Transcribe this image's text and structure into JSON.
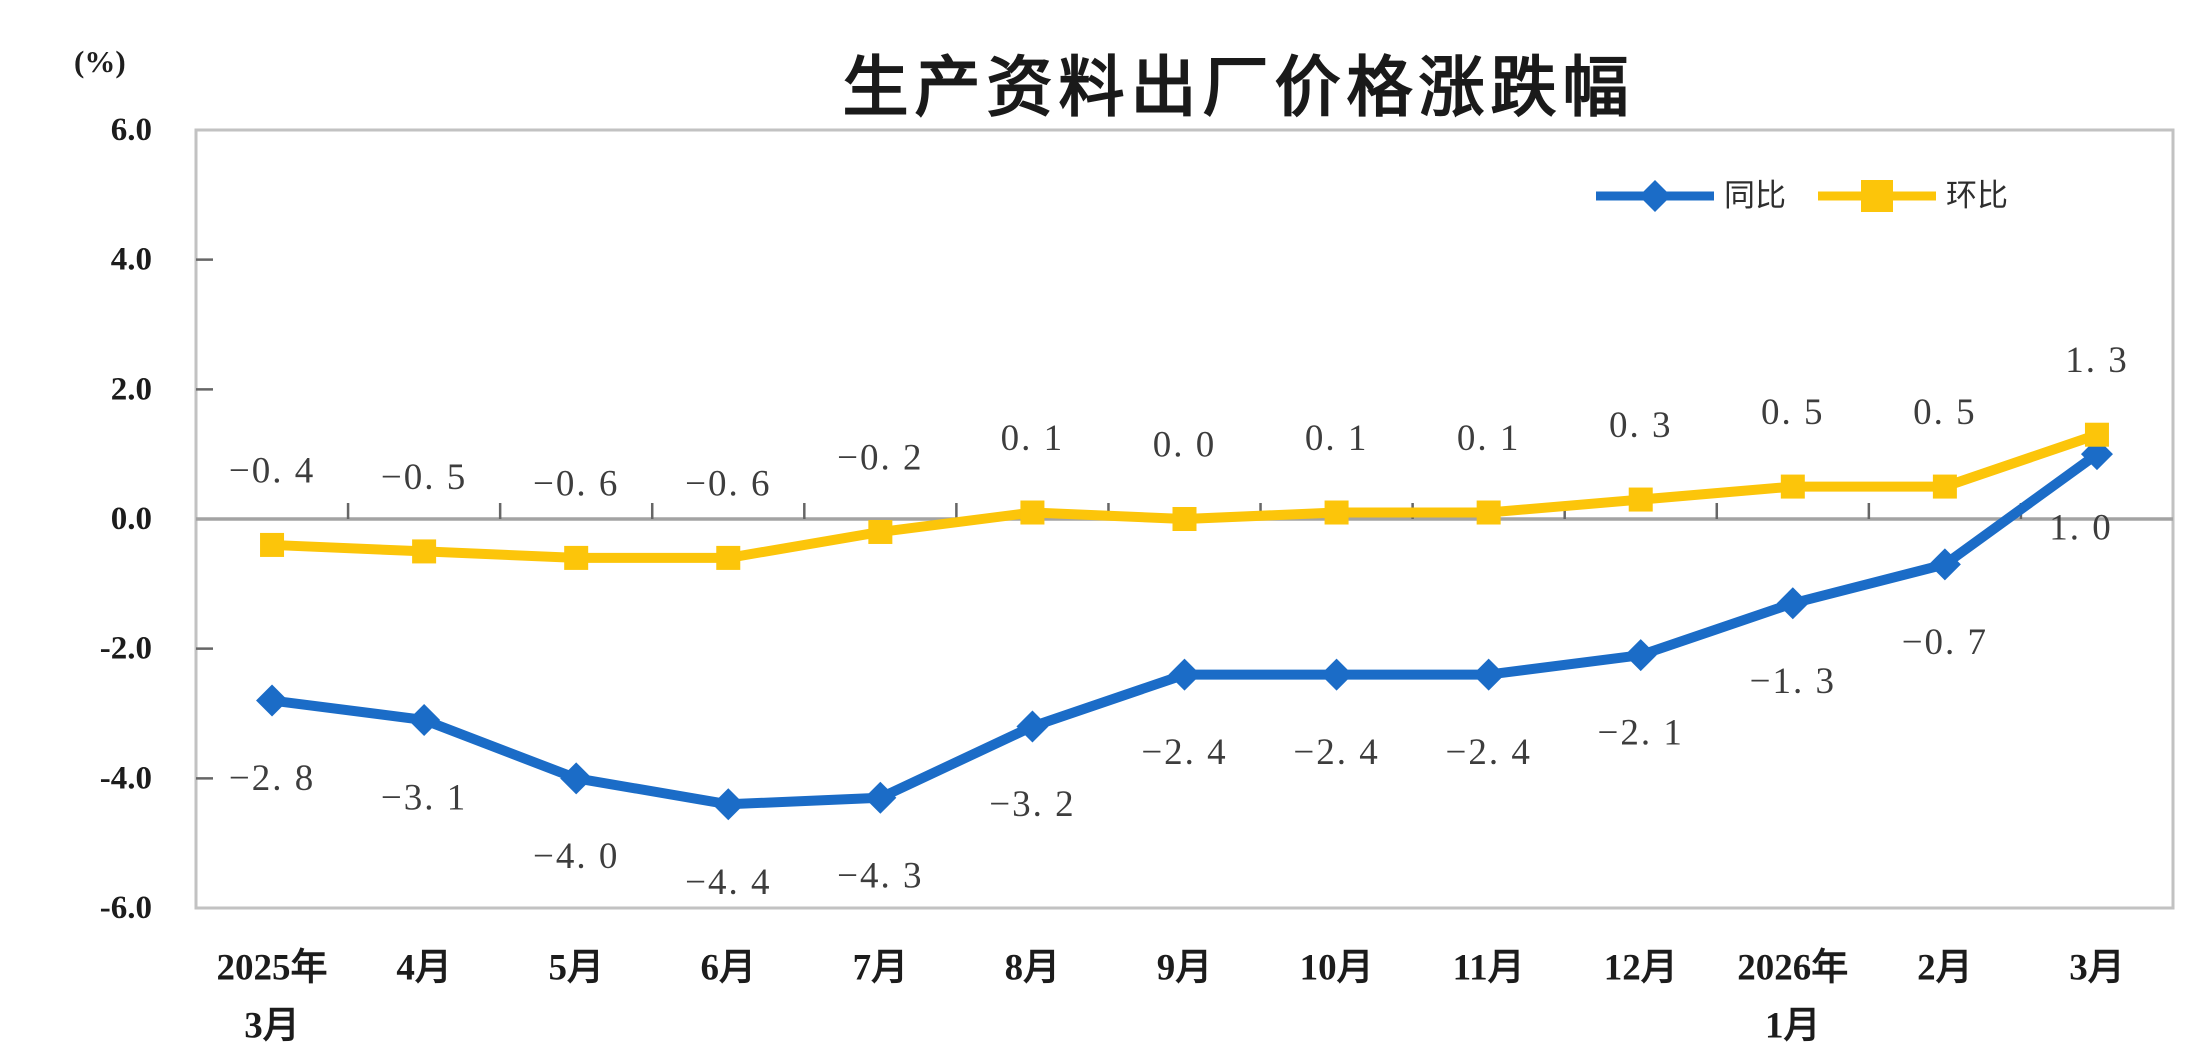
{
  "chart_data": {
    "type": "line",
    "title": "生产资料出厂价格涨跌幅",
    "unit_label": "(%)",
    "xlabel": "",
    "ylabel": "(%)",
    "ylim": [
      -6.0,
      6.0
    ],
    "y_ticks": [
      6.0,
      4.0,
      2.0,
      0.0,
      -2.0,
      -4.0,
      -6.0
    ],
    "y_tick_labels": [
      "6.0",
      "4.0",
      "2.0",
      "0.0",
      "-2.0",
      "-4.0",
      "-6.0"
    ],
    "grid": false,
    "zero_line": true,
    "legend_position": "top-right",
    "categories": [
      "2025年3月",
      "4月",
      "5月",
      "6月",
      "7月",
      "8月",
      "9月",
      "10月",
      "11月",
      "12月",
      "2026年1月",
      "2月",
      "3月"
    ],
    "x_tick_lines": [
      [
        "2025年",
        "3月"
      ],
      [
        "4月"
      ],
      [
        "5月"
      ],
      [
        "6月"
      ],
      [
        "7月"
      ],
      [
        "8月"
      ],
      [
        "9月"
      ],
      [
        "10月"
      ],
      [
        "11月"
      ],
      [
        "12月"
      ],
      [
        "2026年",
        "1月"
      ],
      [
        "2月"
      ],
      [
        "3月"
      ]
    ],
    "series": [
      {
        "name": "同比",
        "marker": "diamond",
        "color": "#1B6CC7",
        "label_position": "below",
        "values": [
          -2.8,
          -3.1,
          -4.0,
          -4.4,
          -4.3,
          -3.2,
          -2.4,
          -2.4,
          -2.4,
          -2.1,
          -1.3,
          -0.7,
          1.0
        ],
        "label_offsets": {
          "12": [
            -16,
            74
          ]
        }
      },
      {
        "name": "环比",
        "marker": "square",
        "color": "#FCC50A",
        "label_position": "above",
        "values": [
          -0.4,
          -0.5,
          -0.6,
          -0.6,
          -0.2,
          0.1,
          0.0,
          0.1,
          0.1,
          0.3,
          0.5,
          0.5,
          1.3
        ],
        "label_offsets": {}
      }
    ]
  },
  "colors": {
    "yoy_blue": "#1B6CC7",
    "mom_yellow": "#FCC50A",
    "zero_line": "#A3A3A3",
    "plot_border": "#C2C2C2",
    "tick": "#666666",
    "data_label_text": "#3D3D3D",
    "axis_text": "#1C1C1C",
    "title_text": "#1A1A1A"
  }
}
